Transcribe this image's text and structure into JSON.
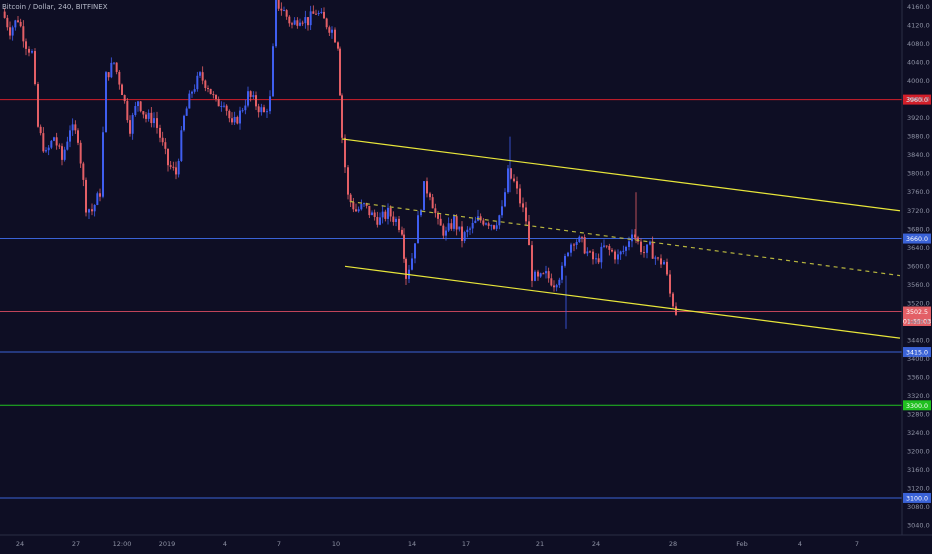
{
  "symbol_title": "Bitcoin / Dollar, 240, BITFINEX",
  "colors": {
    "background": "#0e0e24",
    "up_candle": "#3f5ef0",
    "down_candle": "#e35f66",
    "channel_line": "#e8e63a",
    "midline_dashed": "#b7b53e",
    "axis_text": "#8f93a5",
    "h_red": "#d21f2a",
    "h_blue": "#3a62d6",
    "h_green": "#20c020",
    "h_pink": "#c0445a"
  },
  "chart_data": {
    "type": "candlestick",
    "y_axis_labels": [
      "4160.0",
      "4120.0",
      "4080.0",
      "4040.0",
      "4000.0",
      "3960.0",
      "3920.0",
      "3880.0",
      "3840.0",
      "3800.0",
      "3760.0",
      "3720.0",
      "3680.0",
      "3640.0",
      "3600.0",
      "3560.0",
      "3520.0",
      "3480.0",
      "3440.0",
      "3400.0",
      "3360.0",
      "3320.0",
      "3280.0",
      "3240.0",
      "3200.0",
      "3160.0",
      "3120.0",
      "3080.0",
      "3040.0"
    ],
    "x_axis_labels": [
      "24",
      "27",
      "12:00",
      "2019",
      "4",
      "7",
      "10",
      "14",
      "17",
      "21",
      "24",
      "28",
      "Feb",
      "4",
      "7"
    ],
    "ylim": [
      3020,
      4175
    ],
    "horizontal_levels": [
      {
        "label": "3960.0",
        "value": 3960,
        "color": "#d21f2a",
        "label_bg": "#d21f2a"
      },
      {
        "label": "3660.0",
        "value": 3660,
        "color": "#3a62d6",
        "label_bg": "#3a62d6"
      },
      {
        "label": "3502.5",
        "value": 3502.5,
        "color": "#c0445a",
        "label_bg": "#e35f66"
      },
      {
        "label": "01:55:03",
        "value": 3482,
        "color": "",
        "label_bg": "#e35f66"
      },
      {
        "label": "3415.0",
        "value": 3415,
        "color": "#3a62d6",
        "label_bg": "#3a62d6"
      },
      {
        "label": "3300.0",
        "value": 3300,
        "color": "#20c020",
        "label_bg": "#20c020"
      },
      {
        "label": "3100.0",
        "value": 3100,
        "color": "#3a62d6",
        "label_bg": "#3a62d6"
      }
    ],
    "trendlines": [
      {
        "name": "upper channel",
        "from": [
          342,
          3875
        ],
        "to": [
          900,
          3720
        ],
        "style": "solid"
      },
      {
        "name": "lower channel",
        "from": [
          345,
          3600
        ],
        "to": [
          900,
          3445
        ],
        "style": "solid"
      },
      {
        "name": "mid channel",
        "from": [
          350,
          3740
        ],
        "to": [
          900,
          3580
        ],
        "style": "dashed"
      }
    ],
    "price_path": [
      [
        2,
        4150
      ],
      [
        10,
        4110
      ],
      [
        18,
        4135
      ],
      [
        26,
        4080
      ],
      [
        32,
        4060
      ],
      [
        38,
        3900
      ],
      [
        46,
        3840
      ],
      [
        54,
        3880
      ],
      [
        62,
        3830
      ],
      [
        70,
        3900
      ],
      [
        78,
        3880
      ],
      [
        86,
        3730
      ],
      [
        92,
        3720
      ],
      [
        100,
        3760
      ],
      [
        106,
        4010
      ],
      [
        114,
        4040
      ],
      [
        122,
        3980
      ],
      [
        130,
        3900
      ],
      [
        138,
        3960
      ],
      [
        146,
        3920
      ],
      [
        154,
        3920
      ],
      [
        160,
        3880
      ],
      [
        168,
        3820
      ],
      [
        176,
        3800
      ],
      [
        184,
        3920
      ],
      [
        192,
        3980
      ],
      [
        200,
        4010
      ],
      [
        208,
        3990
      ],
      [
        216,
        3950
      ],
      [
        224,
        3960
      ],
      [
        232,
        3900
      ],
      [
        240,
        3930
      ],
      [
        248,
        3970
      ],
      [
        256,
        3950
      ],
      [
        264,
        3930
      ],
      [
        270,
        3960
      ],
      [
        276,
        4170
      ],
      [
        284,
        4150
      ],
      [
        292,
        4120
      ],
      [
        300,
        4140
      ],
      [
        308,
        4130
      ],
      [
        316,
        4150
      ],
      [
        324,
        4130
      ],
      [
        332,
        4110
      ],
      [
        338,
        4080
      ],
      [
        342,
        3880
      ],
      [
        348,
        3750
      ],
      [
        356,
        3720
      ],
      [
        364,
        3730
      ],
      [
        372,
        3710
      ],
      [
        380,
        3700
      ],
      [
        388,
        3715
      ],
      [
        396,
        3700
      ],
      [
        402,
        3680
      ],
      [
        406,
        3580
      ],
      [
        412,
        3620
      ],
      [
        418,
        3700
      ],
      [
        424,
        3770
      ],
      [
        430,
        3760
      ],
      [
        438,
        3690
      ],
      [
        446,
        3670
      ],
      [
        454,
        3700
      ],
      [
        462,
        3660
      ],
      [
        470,
        3680
      ],
      [
        478,
        3700
      ],
      [
        486,
        3700
      ],
      [
        494,
        3690
      ],
      [
        502,
        3720
      ],
      [
        508,
        3800
      ],
      [
        514,
        3780
      ],
      [
        520,
        3740
      ],
      [
        526,
        3700
      ],
      [
        532,
        3580
      ],
      [
        538,
        3570
      ],
      [
        546,
        3580
      ],
      [
        554,
        3565
      ],
      [
        562,
        3590
      ],
      [
        568,
        3640
      ],
      [
        574,
        3660
      ],
      [
        582,
        3650
      ],
      [
        590,
        3620
      ],
      [
        596,
        3610
      ],
      [
        604,
        3640
      ],
      [
        612,
        3630
      ],
      [
        618,
        3620
      ],
      [
        626,
        3640
      ],
      [
        632,
        3680
      ],
      [
        638,
        3650
      ],
      [
        644,
        3630
      ],
      [
        650,
        3640
      ],
      [
        658,
        3610
      ],
      [
        664,
        3610
      ],
      [
        670,
        3540
      ],
      [
        676,
        3502
      ]
    ]
  }
}
